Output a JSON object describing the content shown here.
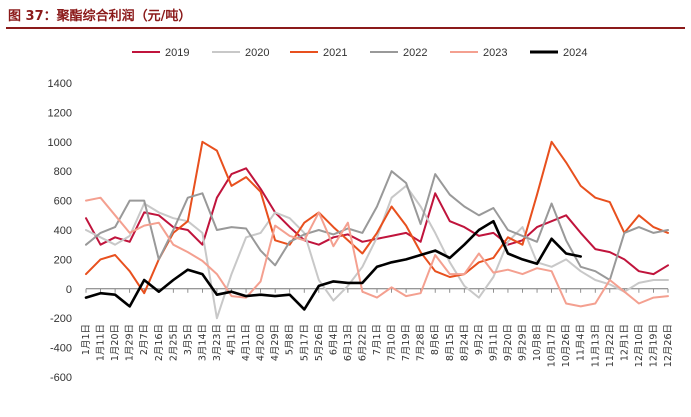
{
  "title": "图 37：聚酯综合利润（元/吨）",
  "chart_data": {
    "type": "line",
    "title": "",
    "xlabel": "",
    "ylabel": "",
    "ylim": [
      -600,
      1400
    ],
    "yticks": [
      -600,
      -400,
      -200,
      0,
      200,
      400,
      600,
      800,
      1000,
      1200,
      1400
    ],
    "grid": false,
    "legend_position": "top",
    "x": [
      "1月1日",
      "1月11日",
      "1月20日",
      "1月29日",
      "2月7日",
      "2月16日",
      "2月25日",
      "3月5日",
      "3月14日",
      "3月23日",
      "4月1日",
      "4月11日",
      "4月20日",
      "4月29日",
      "5月8日",
      "5月17日",
      "5月26日",
      "6月4日",
      "6月13日",
      "6月22日",
      "7月1日",
      "7月10日",
      "7月19日",
      "7月28日",
      "8月6日",
      "8月15日",
      "8月24日",
      "9月2日",
      "9月11日",
      "9月20日",
      "9月29日",
      "10月8日",
      "10月17日",
      "10月26日",
      "11月4日",
      "11月13日",
      "11月22日",
      "12月1日",
      "12月10日",
      "12月19日",
      "12月26日"
    ],
    "series": [
      {
        "name": "2019",
        "color": "#c0143c",
        "values": [
          480,
          300,
          350,
          320,
          520,
          500,
          420,
          400,
          300,
          620,
          780,
          820,
          680,
          520,
          420,
          330,
          300,
          350,
          370,
          320,
          340,
          360,
          380,
          320,
          650,
          460,
          420,
          360,
          380,
          300,
          330,
          420,
          460,
          500,
          380,
          270,
          250,
          200,
          120,
          100,
          160
        ]
      },
      {
        "name": "2020",
        "color": "#c8c8c8",
        "values": [
          400,
          350,
          300,
          360,
          580,
          520,
          480,
          460,
          380,
          -200,
          100,
          350,
          380,
          520,
          480,
          380,
          60,
          -80,
          20,
          150,
          350,
          620,
          700,
          560,
          380,
          180,
          20,
          -60,
          80,
          320,
          420,
          180,
          150,
          200,
          120,
          60,
          30,
          -20,
          40,
          60,
          60
        ]
      },
      {
        "name": "2021",
        "color": "#e8501e",
        "values": [
          100,
          200,
          230,
          120,
          -30,
          200,
          380,
          460,
          1000,
          940,
          700,
          760,
          660,
          330,
          300,
          450,
          520,
          420,
          330,
          240,
          380,
          560,
          430,
          250,
          120,
          80,
          100,
          180,
          210,
          350,
          300,
          640,
          1000,
          860,
          700,
          620,
          590,
          380,
          500,
          420,
          380
        ]
      },
      {
        "name": "2022",
        "color": "#999999",
        "values": [
          300,
          380,
          420,
          600,
          600,
          200,
          400,
          620,
          650,
          400,
          420,
          410,
          260,
          160,
          320,
          370,
          400,
          370,
          410,
          380,
          560,
          800,
          720,
          440,
          780,
          640,
          560,
          500,
          550,
          400,
          360,
          320,
          580,
          330,
          150,
          120,
          60,
          380,
          420,
          380,
          400
        ]
      },
      {
        "name": "2023",
        "color": "#f4a090",
        "values": [
          600,
          620,
          500,
          380,
          430,
          450,
          300,
          250,
          190,
          100,
          -50,
          -60,
          50,
          430,
          360,
          330,
          520,
          290,
          450,
          -20,
          -60,
          10,
          -50,
          -30,
          230,
          100,
          100,
          240,
          110,
          130,
          100,
          140,
          120,
          -100,
          -120,
          -100,
          60,
          -20,
          -100,
          -60,
          -50
        ]
      },
      {
        "name": "2024",
        "color": "#000000",
        "values": [
          -60,
          -30,
          -40,
          -120,
          60,
          -20,
          60,
          130,
          100,
          -40,
          -20,
          -50,
          -40,
          -50,
          -40,
          -140,
          20,
          50,
          40,
          40,
          150,
          180,
          200,
          230,
          260,
          210,
          300,
          400,
          460,
          240,
          200,
          170,
          340,
          240,
          220,
          null,
          null,
          null,
          null,
          null,
          null
        ]
      }
    ]
  }
}
